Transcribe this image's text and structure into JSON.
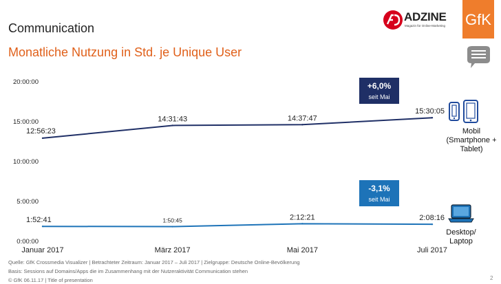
{
  "header": {
    "title": "Communication",
    "subtitle": "Monatliche Nutzung in Std. je Unique User",
    "subtitle_color": "#e0601a",
    "adzine_name": "ADZINE",
    "adzine_tagline": "Magazin für Online-Marketing",
    "adzine_color": "#d6001c",
    "gfk_logo_text": "GfK",
    "gfk_color": "#ef7d2c",
    "chat_icon": "speech-bubble-icon"
  },
  "chart_data": {
    "type": "line",
    "categories": [
      "Januar 2017",
      "März 2017",
      "Mai 2017",
      "Juli 2017"
    ],
    "y_ticks": [
      "0:00:00",
      "5:00:00",
      "10:00:00",
      "15:00:00",
      "20:00:00"
    ],
    "ylim_hours": [
      0,
      20
    ],
    "grid": false,
    "series": [
      {
        "name": "Mobil (Smartphone + Tablet)",
        "color": "#1f2f66",
        "x": [
          0,
          2,
          4,
          6
        ],
        "values_hours": [
          12.94,
          14.53,
          14.63,
          15.5
        ],
        "labels": [
          "12:56:23",
          "14:31:43",
          "14:37:47",
          "15:30:05"
        ],
        "change": "+6,0%",
        "change_note": "seit Mai",
        "badge_color": "#1f2f66"
      },
      {
        "name": "Desktop/ Laptop",
        "color": "#1d73b8",
        "x": [
          0,
          2,
          4,
          6
        ],
        "values_hours": [
          1.88,
          1.85,
          2.21,
          2.14
        ],
        "labels": [
          "1:52:41",
          "1:50:45",
          "2:12:21",
          "2:08:16"
        ],
        "change": "-3,1%",
        "change_note": "seit Mai",
        "badge_color": "#1d73b8"
      }
    ],
    "legend": {
      "mobile_line1": "Mobil",
      "mobile_line2": "(Smartphone +",
      "mobile_line3": "Tablet)",
      "desktop_line1": "Desktop/",
      "desktop_line2": "Laptop",
      "mobile_icons": [
        "smartphone-icon",
        "tablet-icon"
      ],
      "desktop_icon": "laptop-icon"
    }
  },
  "footer": {
    "source": "Quelle: GfK Crossmedia Visualizer | Betrachteter Zeitraum: Januar 2017 – Juli 2017 | Zielgruppe: Deutsche Online-Bevölkerung",
    "basis": "Basis: Sessions auf Domains/Apps die im Zusammenhang mit der Nutzeraktivität Communication stehen",
    "copyright": "© GfK 06.11.17 | Title of presentation",
    "page_number": "2"
  }
}
